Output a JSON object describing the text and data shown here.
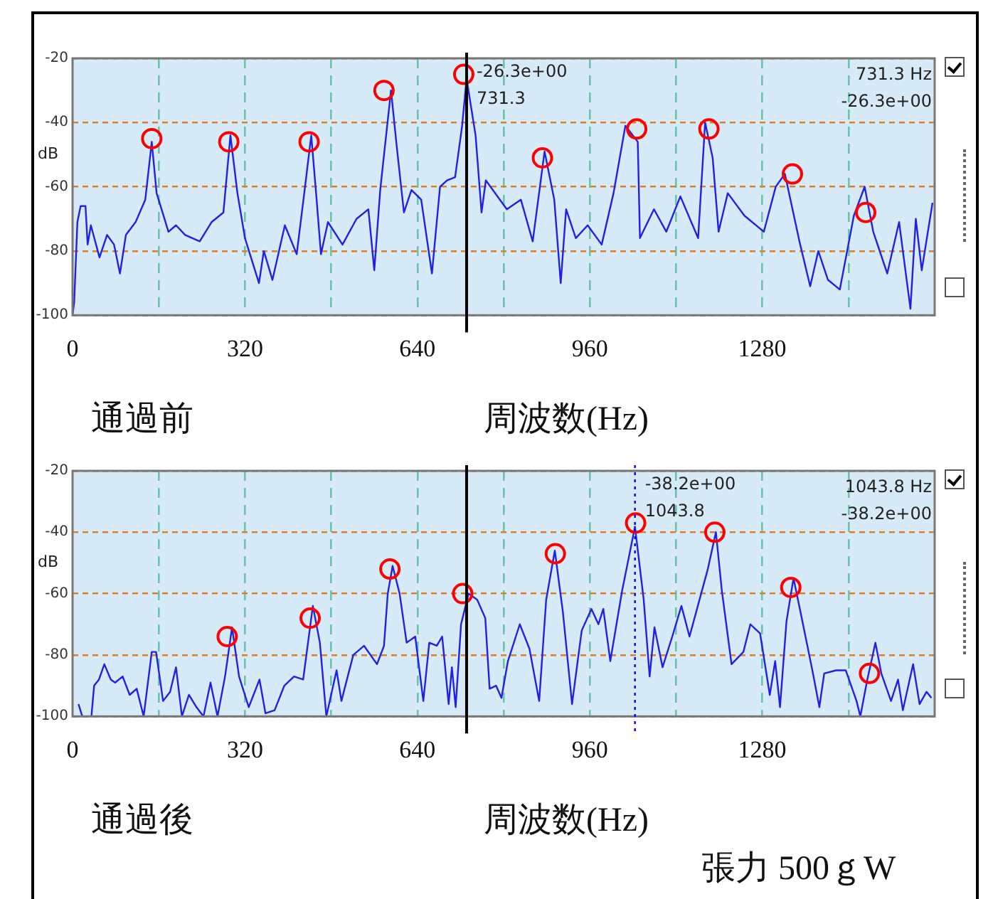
{
  "chart_data": [
    {
      "type": "line",
      "title": "通過前",
      "xlabel": "周波数(Hz)",
      "ylabel": "dB",
      "xlim": [
        0,
        1600
      ],
      "xticks": [
        0,
        {
          "value": 160,
          "label": null
        },
        320,
        {
          "value": 480,
          "label": null
        },
        640,
        {
          "value": 800,
          "label": null
        },
        960,
        {
          "value": 1120,
          "label": null
        },
        1280,
        {
          "value": 1440,
          "label": null
        }
      ],
      "ylim": [
        -100,
        -20
      ],
      "yticks": [
        -20,
        -40,
        -60,
        -80,
        -100
      ],
      "grid": true,
      "legend": false,
      "series": [
        {
          "type": "line",
          "color": "#2020e8",
          "marker": "none",
          "x": [
            0,
            3,
            9,
            15,
            24,
            28,
            34,
            50,
            64,
            77,
            88,
            99,
            117,
            135,
            147,
            156,
            178,
            192,
            209,
            236,
            258,
            280,
            293,
            306,
            320,
            346,
            355,
            371,
            394,
            416,
            430,
            443,
            452,
            461,
            474,
            501,
            527,
            549,
            560,
            571,
            591,
            602,
            615,
            629,
            647,
            667,
            682,
            695,
            710,
            723,
            731.3,
            748,
            759,
            767,
            806,
            832,
            854,
            876,
            894,
            906,
            916,
            934,
            956,
            982,
            1004,
            1026,
            1049,
            1053,
            1079,
            1102,
            1128,
            1161,
            1174,
            1188,
            1199,
            1216,
            1247,
            1283,
            1305,
            1322,
            1349,
            1369,
            1384,
            1402,
            1424,
            1450,
            1470,
            1486,
            1512,
            1534,
            1555,
            1565,
            1576,
            1596
          ],
          "values": [
            -100,
            -96,
            -71,
            -66,
            -66,
            -78,
            -72,
            -82,
            -75,
            -78,
            -87,
            -75,
            -71,
            -64,
            -46,
            -62,
            -74,
            -72,
            -75,
            -77,
            -71,
            -68,
            -44,
            -62,
            -76,
            -90,
            -80,
            -89,
            -72,
            -81,
            -62,
            -44,
            -62,
            -81,
            -71,
            -78,
            -70,
            -67,
            -86,
            -61,
            -30,
            -48,
            -68,
            -61,
            -64,
            -87,
            -60,
            -58,
            -57,
            -41,
            -26.3,
            -44,
            -68,
            -58,
            -67,
            -64,
            -77,
            -49,
            -64,
            -90,
            -67,
            -76,
            -72,
            -78,
            -62,
            -41,
            -46,
            -76,
            -67,
            -74,
            -63,
            -76,
            -40,
            -51,
            -74,
            -62,
            -69,
            -74,
            -60,
            -56,
            -77,
            -91,
            -80,
            -89,
            -92,
            -69,
            -60,
            -74,
            -87,
            -71,
            -98,
            -70,
            -86,
            -65
          ]
        },
        {
          "type": "scatter",
          "color": "#ff0000",
          "marker": "circle",
          "x": [
            147,
            290,
            439,
            578,
            726,
            872,
            1047,
            1181,
            1336,
            1472
          ],
          "values": [
            -45,
            -46,
            -46,
            -30,
            -25,
            -51,
            -42,
            -42,
            -56,
            -68
          ]
        }
      ],
      "ref_lines": [
        {
          "axis": "x",
          "value": 731.3,
          "color": "#0000ff",
          "line_style": "dotted"
        },
        {
          "axis": "x",
          "value": 731.3,
          "color": "#000000",
          "line_style": "solid"
        }
      ],
      "annotations": [
        "-26.3e+00",
        "731.3",
        "731.3 Hz",
        "-26.3e+00"
      ]
    },
    {
      "type": "line",
      "title": "通過後",
      "xlabel": "周波数(Hz)",
      "ylabel": "dB",
      "xlim": [
        0,
        1600
      ],
      "xticks": [
        0,
        {
          "value": 160,
          "label": null
        },
        320,
        {
          "value": 480,
          "label": null
        },
        640,
        {
          "value": 800,
          "label": null
        },
        960,
        {
          "value": 1120,
          "label": null
        },
        1280,
        {
          "value": 1440,
          "label": null
        }
      ],
      "ylim": [
        -100,
        -20
      ],
      "yticks": [
        -20,
        -40,
        -60,
        -80,
        -100
      ],
      "grid": true,
      "legend": false,
      "series": [
        {
          "type": "line",
          "color": "#2020e8",
          "marker": "none",
          "x": [
            11,
            18,
            35,
            40,
            49,
            59,
            71,
            79,
            93,
            106,
            119,
            132,
            147,
            155,
            168,
            181,
            192,
            203,
            216,
            230,
            243,
            256,
            269,
            283,
            296,
            309,
            327,
            347,
            358,
            375,
            393,
            411,
            428,
            446,
            459,
            471,
            490,
            499,
            521,
            541,
            565,
            578,
            585,
            594,
            607,
            620,
            636,
            651,
            662,
            676,
            686,
            698,
            704,
            711,
            721,
            735,
            751,
            766,
            774,
            786,
            796,
            808,
            830,
            848,
            866,
            879,
            895,
            910,
            927,
            945,
            963,
            976,
            985,
            998,
            1020,
            1043.8,
            1060,
            1071,
            1080,
            1095,
            1113,
            1130,
            1145,
            1179,
            1194,
            1205,
            1223,
            1245,
            1258,
            1276,
            1294,
            1304,
            1313,
            1325,
            1338,
            1351,
            1373,
            1386,
            1395,
            1417,
            1435,
            1455,
            1462,
            1475,
            1490,
            1501,
            1519,
            1532,
            1541,
            1560,
            1572,
            1585,
            1594
          ],
          "values": [
            -96,
            -100,
            -100,
            -90,
            -88,
            -83,
            -88,
            -89,
            -87,
            -93,
            -91,
            -100,
            -79,
            -79,
            -95,
            -92,
            -84,
            -100,
            -93,
            -97,
            -100,
            -89,
            -100,
            -87,
            -71,
            -87,
            -97,
            -88,
            -99,
            -98,
            -90,
            -87,
            -88,
            -64,
            -76,
            -100,
            -85,
            -95,
            -80,
            -77,
            -83,
            -77,
            -60,
            -51,
            -60,
            -76,
            -74,
            -95,
            -76,
            -77,
            -74,
            -96,
            -84,
            -97,
            -70,
            -60,
            -62,
            -68,
            -91,
            -90,
            -94,
            -82,
            -70,
            -78,
            -95,
            -62,
            -46,
            -66,
            -96,
            -72,
            -65,
            -70,
            -65,
            -82,
            -59,
            -38.2,
            -62,
            -87,
            -71,
            -84,
            -74,
            -64,
            -74,
            -52,
            -40,
            -59,
            -83,
            -79,
            -70,
            -73,
            -93,
            -82,
            -97,
            -69,
            -55,
            -66,
            -85,
            -97,
            -86,
            -85,
            -85,
            -95,
            -100,
            -88,
            -76,
            -86,
            -95,
            -88,
            -98,
            -83,
            -96,
            -92,
            -94
          ]
        },
        {
          "type": "scatter",
          "color": "#ff0000",
          "marker": "circle",
          "x": [
            287,
            441,
            589,
            724,
            896,
            1045,
            1192,
            1333,
            1479
          ],
          "values": [
            -74,
            -68,
            -52,
            -60,
            -47,
            -37,
            -40,
            -58,
            -86
          ]
        }
      ],
      "ref_lines": [
        {
          "axis": "x",
          "value": 1043.8,
          "color": "#0000ff",
          "line_style": "dotted"
        },
        {
          "axis": "x",
          "value": 731.3,
          "color": "#000000",
          "line_style": "solid"
        }
      ],
      "annotations": [
        "-38.2e+00",
        "1043.8",
        "1043.8 Hz",
        "-38.2e+00",
        "張力 500ｇW"
      ]
    }
  ]
}
